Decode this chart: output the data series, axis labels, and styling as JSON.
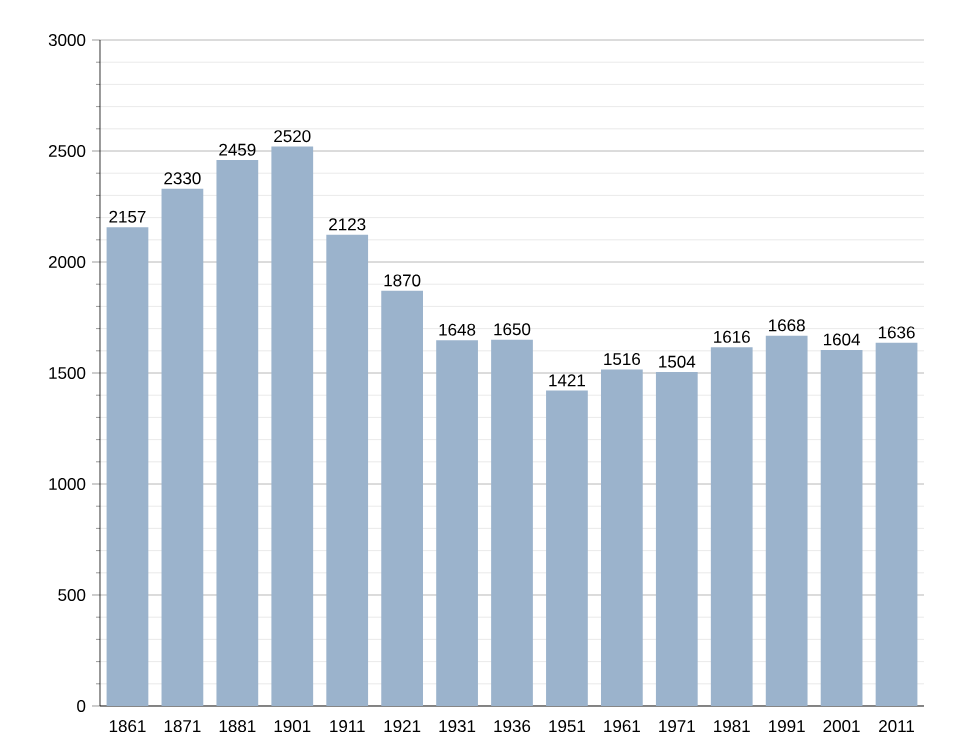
{
  "chart_data": {
    "type": "bar",
    "categories": [
      "1861",
      "1871",
      "1881",
      "1901",
      "1911",
      "1921",
      "1931",
      "1936",
      "1951",
      "1961",
      "1971",
      "1981",
      "1991",
      "2001",
      "2011"
    ],
    "values": [
      2157,
      2330,
      2459,
      2520,
      2123,
      1870,
      1648,
      1650,
      1421,
      1516,
      1504,
      1616,
      1668,
      1604,
      1636
    ],
    "color": "#9bb3cc",
    "ylim": [
      0,
      3000
    ],
    "yticks": [
      0,
      500,
      1000,
      1500,
      2000,
      2500,
      3000
    ],
    "grid": "y",
    "data_labels": true
  }
}
